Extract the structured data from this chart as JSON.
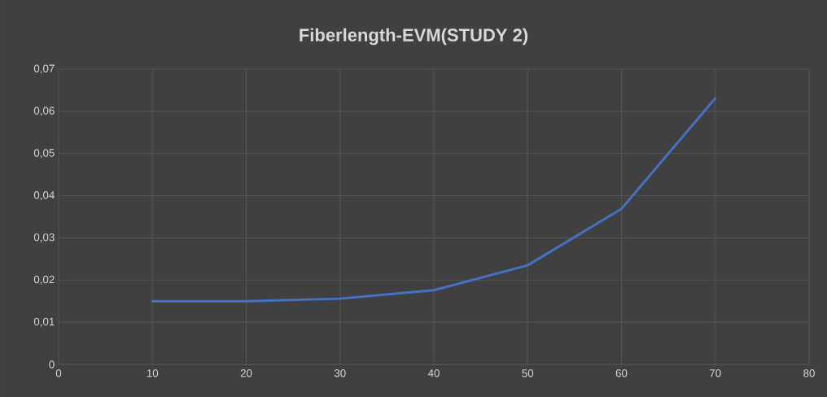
{
  "chart_data": {
    "type": "line",
    "title": "Fiberlength-EVM(STUDY 2)",
    "x": [
      10,
      20,
      30,
      40,
      50,
      60,
      70
    ],
    "series": [
      {
        "color": "#4472c4",
        "values": [
          0.015,
          0.015,
          0.0156,
          0.0176,
          0.0235,
          0.0369,
          0.0631
        ]
      }
    ],
    "xlim": [
      0,
      80
    ],
    "xticks": [
      0,
      10,
      20,
      30,
      40,
      50,
      60,
      70,
      80
    ],
    "ylim": [
      0,
      0.07
    ],
    "yticks": [
      0,
      {
        "value": 0.01,
        "label": "0,01"
      },
      {
        "value": 0.02,
        "label": "0,02"
      },
      {
        "value": 0.03,
        "label": "0,03"
      },
      {
        "value": 0.04,
        "label": "0,04"
      },
      {
        "value": 0.05,
        "label": "0,05"
      },
      {
        "value": 0.06,
        "label": "0,06"
      },
      {
        "value": 0.07,
        "label": "0,07"
      }
    ],
    "grid": true,
    "line_style": "solid"
  }
}
